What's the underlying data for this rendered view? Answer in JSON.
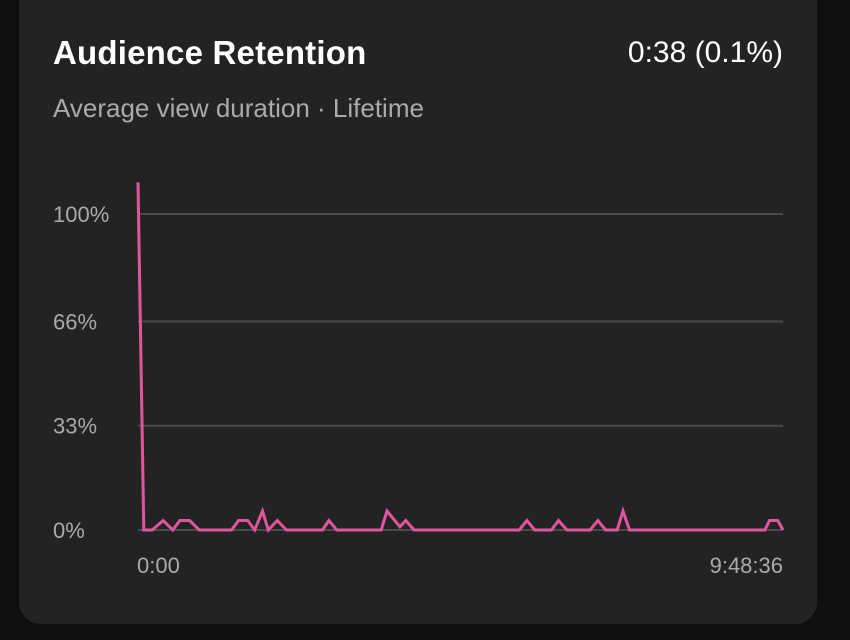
{
  "header": {
    "title": "Audience Retention",
    "metric": "0:38 (0.1%)",
    "subtitle": "Average view duration · Lifetime"
  },
  "colors": {
    "background": "#0f0f0f",
    "card": "#232323",
    "line": "#e0559e",
    "grid": "#4a4a4a",
    "muted_text": "#aaaaaa"
  },
  "chart_data": {
    "type": "line",
    "title": "Audience Retention",
    "xlabel": "",
    "ylabel": "",
    "x_tick_labels": [
      "0:00",
      "9:48:36"
    ],
    "y_ticks": [
      {
        "value": 0,
        "label": "0%"
      },
      {
        "value": 33,
        "label": "33%"
      },
      {
        "value": 66,
        "label": "66%"
      },
      {
        "value": 100,
        "label": "100%"
      }
    ],
    "ylim": [
      0,
      100
    ],
    "xlim": [
      0,
      100
    ],
    "grid": true,
    "series": [
      {
        "color": "#e0559e",
        "points": [
          [
            0,
            110
          ],
          [
            0.9,
            0
          ],
          [
            2.2,
            0
          ],
          [
            3.9,
            3
          ],
          [
            5.4,
            0
          ],
          [
            6.5,
            3
          ],
          [
            8,
            3
          ],
          [
            9.5,
            0
          ],
          [
            14.5,
            0
          ],
          [
            15.6,
            3
          ],
          [
            17,
            3
          ],
          [
            18.1,
            0
          ],
          [
            19.3,
            6
          ],
          [
            20.2,
            0
          ],
          [
            21.6,
            3
          ],
          [
            23,
            0
          ],
          [
            28.6,
            0
          ],
          [
            29.6,
            3
          ],
          [
            30.8,
            0
          ],
          [
            37.7,
            0
          ],
          [
            38.6,
            6
          ],
          [
            40.6,
            1
          ],
          [
            41.5,
            3
          ],
          [
            42.8,
            0
          ],
          [
            59.1,
            0
          ],
          [
            60.3,
            3
          ],
          [
            61.5,
            0
          ],
          [
            64.1,
            0
          ],
          [
            65.2,
            3
          ],
          [
            66.5,
            0
          ],
          [
            70.1,
            0
          ],
          [
            71.3,
            3
          ],
          [
            72.5,
            0
          ],
          [
            74.3,
            0
          ],
          [
            75.2,
            6
          ],
          [
            76.2,
            0
          ],
          [
            97.2,
            0
          ],
          [
            97.9,
            3
          ],
          [
            99.2,
            3
          ],
          [
            100,
            0
          ]
        ]
      }
    ]
  }
}
